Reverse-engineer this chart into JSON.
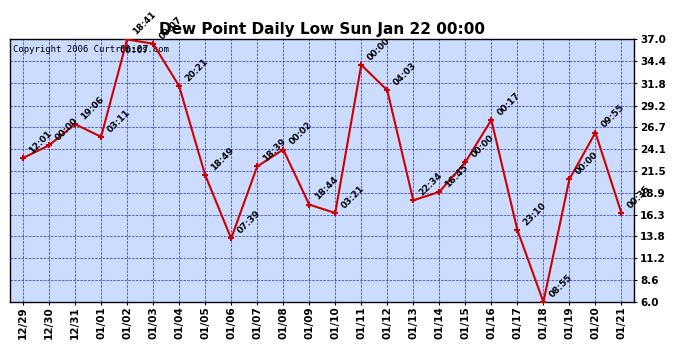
{
  "title": "Dew Point Daily Low Sun Jan 22 00:00",
  "copyright": "Copyright 2006 Curtronics.com",
  "second_label": "00:07",
  "x_labels": [
    "12/29",
    "12/30",
    "12/31",
    "01/01",
    "01/02",
    "01/03",
    "01/04",
    "01/05",
    "01/06",
    "01/07",
    "01/08",
    "01/09",
    "01/10",
    "01/11",
    "01/12",
    "01/13",
    "01/14",
    "01/15",
    "01/16",
    "01/17",
    "01/18",
    "01/19",
    "01/20",
    "01/21"
  ],
  "y_values": [
    23.0,
    24.5,
    27.0,
    25.5,
    37.0,
    36.5,
    31.5,
    21.0,
    13.5,
    22.0,
    24.0,
    17.5,
    16.5,
    34.0,
    31.0,
    18.0,
    19.0,
    22.5,
    27.5,
    14.5,
    6.0,
    20.5,
    26.0,
    16.5
  ],
  "point_labels": [
    "12:01",
    "00:00",
    "19:06",
    "03:11",
    "18:41",
    "00:07",
    "20:21",
    "18:49",
    "07:39",
    "18:39",
    "00:02",
    "18:44",
    "03:21",
    "00:00",
    "04:03",
    "22:34",
    "16:45",
    "00:00",
    "00:17",
    "23:10",
    "08:55",
    "00:00",
    "09:55",
    "00:35"
  ],
  "y_ticks": [
    6.0,
    8.6,
    11.2,
    13.8,
    16.3,
    18.9,
    21.5,
    24.1,
    26.7,
    29.2,
    31.8,
    34.4,
    37.0
  ],
  "y_min": 6.0,
  "y_max": 37.0,
  "line_color": "#cc0000",
  "marker_color": "#cc0000",
  "bg_color": "#ccdcff",
  "grid_color": "#0000bb",
  "border_color": "#000000",
  "title_fontsize": 11,
  "tick_label_fontsize": 7.5,
  "annotation_fontsize": 6.5,
  "copyright_fontsize": 6.5
}
